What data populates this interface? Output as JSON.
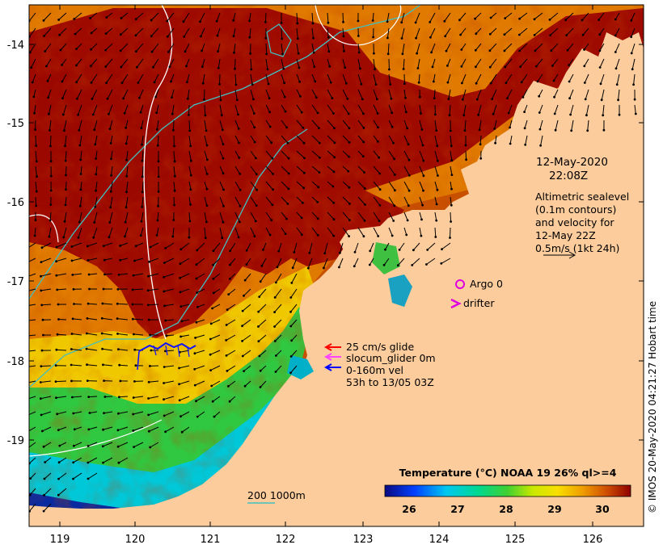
{
  "axes": {
    "x_ticks": [
      "119",
      "120",
      "121",
      "122",
      "123",
      "124",
      "125",
      "126"
    ],
    "y_ticks": [
      "-14",
      "-15",
      "-16",
      "-17",
      "-18",
      "-19"
    ]
  },
  "datetime": {
    "date": "12-May-2020",
    "time": "22:08Z"
  },
  "sealevel_legend": {
    "lines": [
      "Altimetric sealevel",
      "(0.1m contours)",
      "and velocity for",
      "12-May 22Z",
      "0.5m/s (1kt 24h)"
    ]
  },
  "argo": {
    "label": "Argo 0",
    "color": "#e000e0"
  },
  "drifter": {
    "label": "drifter",
    "color": "#e000e0"
  },
  "glider_legend": {
    "glide": "25 cm/s glide",
    "slocum": "slocum_glider 0m",
    "vel": "0-160m vel",
    "period": "53h to 13/05 03Z",
    "colors": {
      "glide": "#ff0000",
      "slocum": "#ff44ff",
      "vel": "#0000ff"
    }
  },
  "colorbar": {
    "title": "Temperature (°C) NOAA 19 26% ql>=4",
    "ticks": [
      "26",
      "27",
      "28",
      "29",
      "30"
    ]
  },
  "depth_legend": {
    "label": "200  1000m",
    "color": "#40c0c0"
  },
  "side_credit": "© IMOS 20-May-2020 04:21:27 Hobart time",
  "colors": {
    "land": "#fccc9c",
    "warm_dark": "#9e0a00",
    "warm_mid": "#d95a00",
    "warm_orange": "#f29a10",
    "yellow": "#f7e400",
    "green": "#2cc83c",
    "cyan": "#00c8e0",
    "navy": "#0a1a8c",
    "contour_200": "#40c0c0",
    "contour_sealevel": "#ffffff"
  },
  "icons": [
    "vector-arrow-icon",
    "argo-circle-icon",
    "drifter-chevron-icon"
  ]
}
